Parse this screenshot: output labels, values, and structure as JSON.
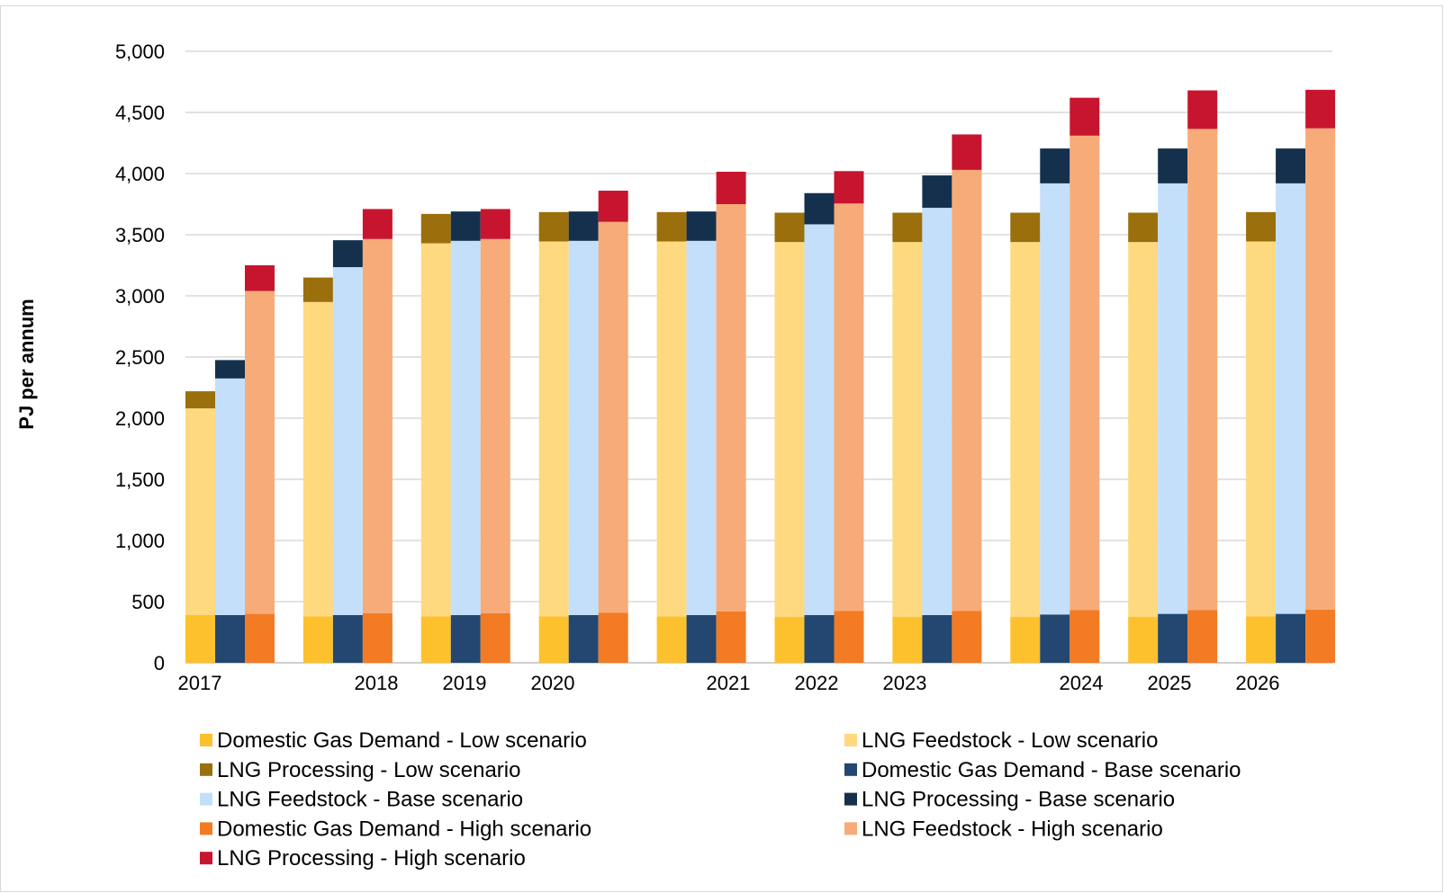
{
  "chart_data": {
    "type": "bar",
    "stacked": true,
    "ylabel": "PJ per annum",
    "ylim": [
      0,
      5000
    ],
    "yticks": [
      0,
      500,
      1000,
      1500,
      2000,
      2500,
      3000,
      3500,
      4000,
      4500,
      5000
    ],
    "ytick_labels": [
      "0",
      "500",
      "1,000",
      "1,500",
      "2,000",
      "2,500",
      "3,000",
      "3,500",
      "4,000",
      "4,500",
      "5,000"
    ],
    "grid": "horizontal",
    "legend_position": "bottom",
    "xtick_labels": [
      "2017",
      "2018",
      "2019",
      "2020",
      "2021",
      "2022",
      "2023",
      "2024",
      "2025",
      "2026"
    ],
    "categories": [
      "2017",
      "2018",
      "2019",
      "2020",
      "2021",
      "2022",
      "2023",
      "2024",
      "2025",
      "2026"
    ],
    "scenarios": [
      {
        "name": "Low scenario",
        "segments": [
          {
            "name": "Domestic Gas Demand - Low scenario",
            "color": "#FCC12C",
            "values": [
              390,
              380,
              380,
              380,
              380,
              375,
              375,
              375,
              375,
              380
            ]
          },
          {
            "name": "LNG Feedstock - Low scenario",
            "color": "#FED97F",
            "values": [
              1690,
              2570,
              3050,
              3065,
              3065,
              3065,
              3065,
              3065,
              3065,
              3065
            ]
          },
          {
            "name": "LNG Processing - Low scenario",
            "color": "#9A6F0C",
            "values": [
              140,
              200,
              240,
              240,
              240,
              240,
              240,
              240,
              240,
              240
            ]
          }
        ]
      },
      {
        "name": "Base scenario",
        "segments": [
          {
            "name": "Domestic Gas Demand - Base scenario",
            "color": "#234770",
            "values": [
              390,
              390,
              390,
              390,
              390,
              390,
              390,
              395,
              400,
              400
            ]
          },
          {
            "name": "LNG Feedstock - Base scenario",
            "color": "#C4DFFA",
            "values": [
              1935,
              2845,
              3060,
              3060,
              3060,
              3195,
              3330,
              3525,
              3520,
              3520
            ]
          },
          {
            "name": "LNG Processing - Base scenario",
            "color": "#15304D",
            "values": [
              150,
              220,
              240,
              240,
              240,
              255,
              265,
              285,
              285,
              285
            ]
          }
        ]
      },
      {
        "name": "High scenario",
        "segments": [
          {
            "name": "Domestic Gas Demand - High scenario",
            "color": "#F27B24",
            "values": [
              400,
              405,
              405,
              410,
              420,
              425,
              425,
              430,
              430,
              435
            ]
          },
          {
            "name": "LNG Feedstock - High scenario",
            "color": "#F7AB78",
            "values": [
              2640,
              3060,
              3060,
              3195,
              3330,
              3330,
              3605,
              3880,
              3935,
              3935
            ]
          },
          {
            "name": "LNG Processing - High scenario",
            "color": "#C8152F",
            "values": [
              210,
              245,
              245,
              255,
              265,
              265,
              290,
              310,
              315,
              315
            ]
          }
        ]
      }
    ],
    "legend": [
      {
        "label": "Domestic Gas Demand - Low scenario",
        "color": "#FCC12C"
      },
      {
        "label": "LNG Feedstock - Low scenario",
        "color": "#FED97F"
      },
      {
        "label": "LNG Processing - Low scenario",
        "color": "#9A6F0C"
      },
      {
        "label": "Domestic Gas Demand - Base scenario",
        "color": "#234770"
      },
      {
        "label": "LNG Feedstock - Base scenario",
        "color": "#C4DFFA"
      },
      {
        "label": "LNG Processing - Base scenario",
        "color": "#15304D"
      },
      {
        "label": "Domestic Gas Demand - High scenario",
        "color": "#F27B24"
      },
      {
        "label": "LNG Feedstock - High scenario",
        "color": "#F7AB78"
      },
      {
        "label": "LNG Processing - High scenario",
        "color": "#C8152F"
      }
    ]
  }
}
